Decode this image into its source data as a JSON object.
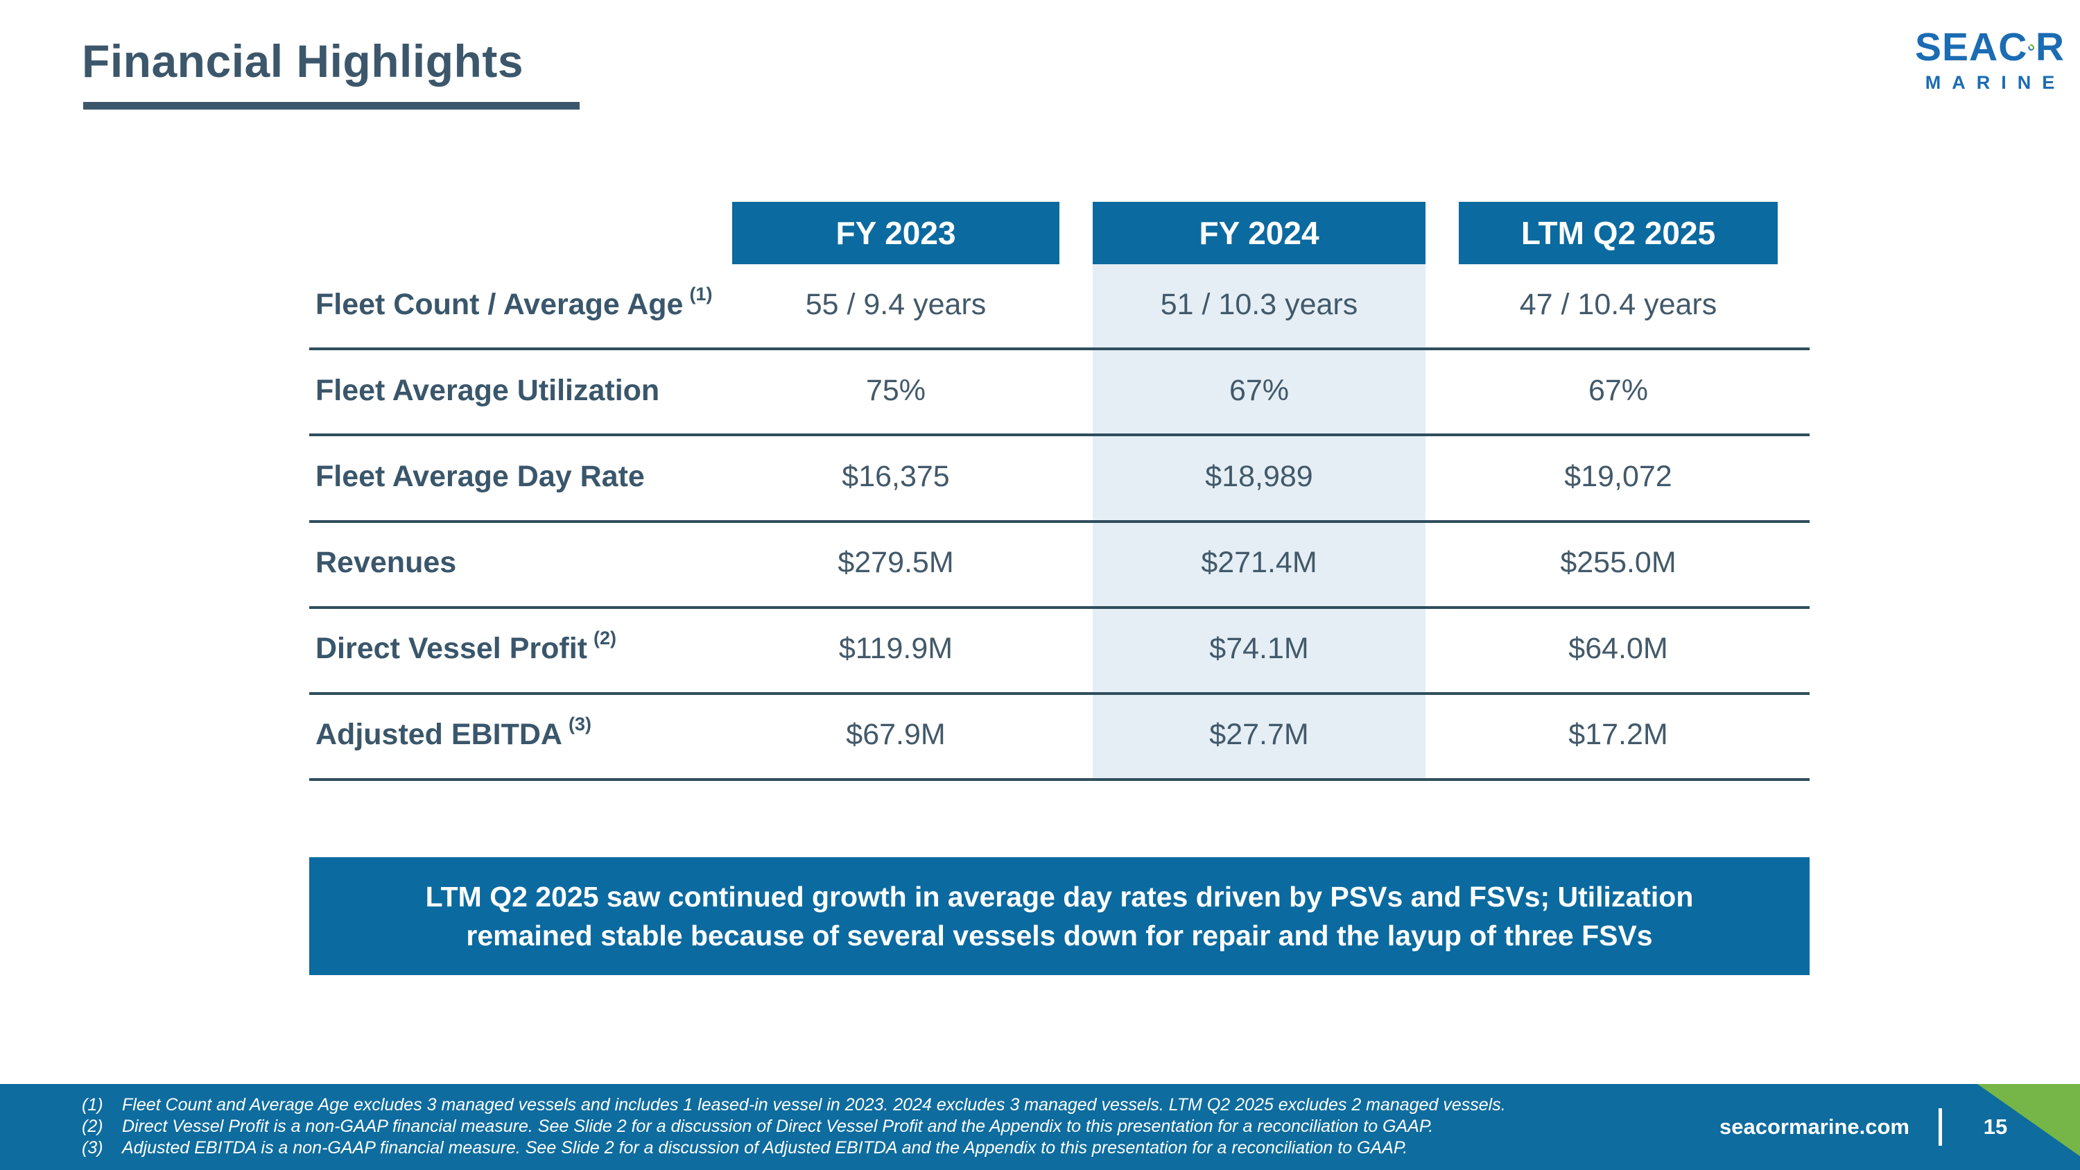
{
  "header": {
    "title": "Financial Highlights"
  },
  "logo": {
    "word_start": "SEAC",
    "word_end": "R",
    "subtitle": "MARINE"
  },
  "table": {
    "columns": [
      "FY 2023",
      "FY 2024",
      "LTM Q2 2025"
    ],
    "highlighted_column": "FY 2024",
    "rows": [
      {
        "label": "Fleet Count / Average Age",
        "footnote": "(1)",
        "values": [
          "55 / 9.4 years",
          "51 / 10.3 years",
          "47 / 10.4 years"
        ]
      },
      {
        "label": "Fleet Average Utilization",
        "footnote": "",
        "values": [
          "75%",
          "67%",
          "67%"
        ]
      },
      {
        "label": "Fleet Average Day Rate",
        "footnote": "",
        "values": [
          "$16,375",
          "$18,989",
          "$19,072"
        ]
      },
      {
        "label": "Revenues",
        "footnote": "",
        "values": [
          "$279.5M",
          "$271.4M",
          "$255.0M"
        ]
      },
      {
        "label": "Direct Vessel Profit",
        "footnote": "(2)",
        "values": [
          "$119.9M",
          "$74.1M",
          "$64.0M"
        ]
      },
      {
        "label": "Adjusted EBITDA",
        "footnote": "(3)",
        "values": [
          "$67.9M",
          "$27.7M",
          "$17.2M"
        ]
      }
    ]
  },
  "callout": {
    "line1": "LTM Q2 2025 saw continued growth in average day rates driven by PSVs and FSVs; Utilization",
    "line2": "remained stable because of several vessels down for repair and the layup of three FSVs"
  },
  "footer": {
    "footnotes": [
      {
        "num": "(1)",
        "text": "Fleet Count and Average Age excludes 3 managed vessels and includes 1 leased-in vessel in 2023. 2024 excludes 3 managed vessels. LTM Q2 2025 excludes 2 managed vessels."
      },
      {
        "num": "(2)",
        "text": "Direct Vessel Profit is a non-GAAP financial measure. See Slide 2 for a discussion of Direct Vessel Profit and the Appendix to this presentation for a reconciliation to GAAP."
      },
      {
        "num": "(3)",
        "text": "Adjusted EBITDA is a non-GAAP financial measure. See Slide 2 for a discussion of Adjusted EBITDA and the Appendix to this presentation for a reconciliation to GAAP."
      }
    ],
    "website": "seacormarine.com",
    "page_number": "15"
  },
  "colors": {
    "primary_blue": "#0b6a9f",
    "dark_slate": "#3a566b",
    "highlight_light_blue": "#e4eef4",
    "footer_green": "#76b648",
    "logo_blue": "#1b6cb3",
    "logo_green": "#5fb132"
  }
}
